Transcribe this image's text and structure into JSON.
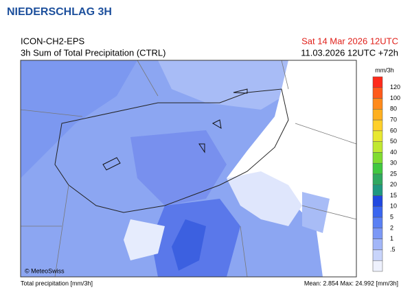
{
  "header": {
    "title": "NIEDERSCHLAG 3H"
  },
  "plot": {
    "model": "ICON-CH2-EPS",
    "product": "3h Sum of Total Precipitation (CTRL)",
    "valid_time": "Sat 14 Mar 2026 12UTC",
    "run": "11.03.2026 12UTC +72h",
    "credit": "© MeteoSwiss"
  },
  "legend": {
    "unit": "mm/3h",
    "colors": [
      "#ff2a1a",
      "#ff5a1a",
      "#ff8a1a",
      "#ffb020",
      "#ffd02a",
      "#e8e830",
      "#c0e830",
      "#80dc30",
      "#40c840",
      "#30a860",
      "#209880",
      "#2048e0",
      "#3a66f0",
      "#5a80f4",
      "#7c98f6",
      "#a2b6f8",
      "#c8d4fb",
      "#eef1fd"
    ],
    "labels": [
      "120",
      "100",
      "80",
      "70",
      "60",
      "50",
      "40",
      "30",
      "25",
      "20",
      "15",
      "10",
      "5",
      "2",
      "1",
      ".5"
    ]
  },
  "footer": {
    "left": "Total precipitation [mm/3h]",
    "right": "Mean:   2.854 Max: 24.992 [mm/3h]"
  }
}
